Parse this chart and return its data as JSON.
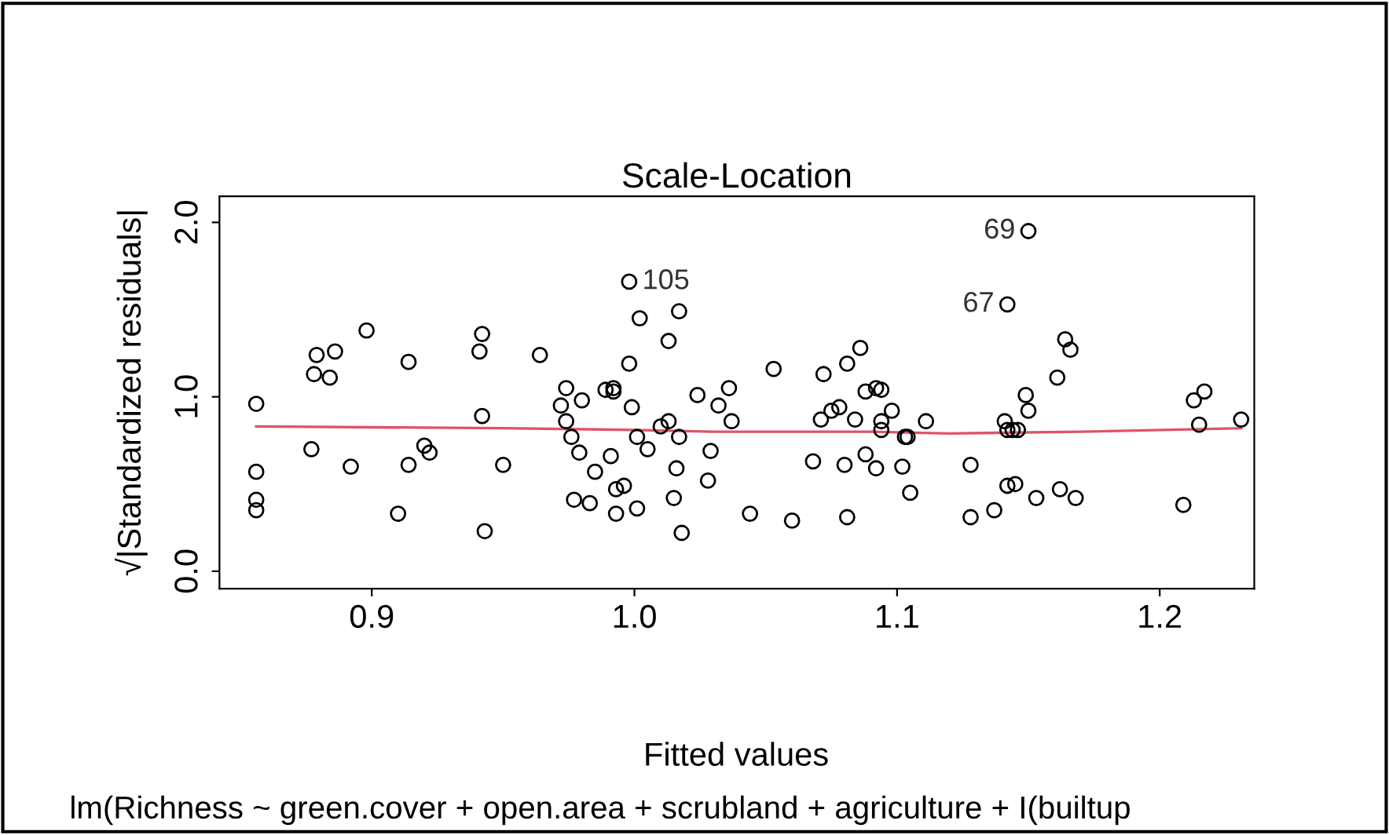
{
  "chart_data": {
    "type": "scatter",
    "title": "Scale-Location",
    "xlabel": "Fitted values",
    "ylabel": "√|Standardized residuals|",
    "annotations": [
      {
        "text": "105",
        "x": 0.998,
        "y": 1.66
      },
      {
        "text": "69",
        "x": 1.15,
        "y": 1.95
      },
      {
        "text": "67",
        "x": 1.142,
        "y": 1.53
      },
      "lm(Richness ~ green.cover + open.area + scrubland + agriculture + I(builtup"
    ],
    "xlim": [
      0.842,
      1.236
    ],
    "ylim": [
      -0.1,
      2.15
    ],
    "xticks": [
      {
        "value": 0.9,
        "label": "0.9"
      },
      {
        "value": 1.0,
        "label": "1.0"
      },
      {
        "value": 1.1,
        "label": "1.1"
      },
      {
        "value": 1.2,
        "label": "1.2"
      }
    ],
    "yticks": [
      {
        "value": 0.0,
        "label": "0.0"
      },
      {
        "value": 1.0,
        "label": "1.0"
      },
      {
        "value": 2.0,
        "label": "2.0"
      }
    ],
    "grid": false,
    "legend": false,
    "marker": "circle",
    "series": [
      {
        "color": "#000000",
        "x": [
          0.856,
          0.856,
          0.856,
          0.856,
          0.877,
          0.879,
          0.886,
          0.878,
          0.884,
          0.898,
          0.892,
          0.914,
          0.91,
          0.914,
          0.92,
          0.922,
          0.942,
          0.941,
          0.942,
          0.943,
          0.95,
          0.964,
          0.974,
          0.972,
          0.974,
          0.976,
          0.98,
          0.979,
          0.977,
          0.983,
          0.985,
          0.989,
          0.992,
          0.992,
          0.991,
          0.993,
          0.996,
          0.993,
          1.001,
          0.998,
          1.002,
          1.017,
          1.013,
          0.998,
          0.999,
          1.001,
          1.005,
          1.01,
          1.013,
          1.017,
          1.016,
          1.015,
          1.018,
          1.024,
          1.032,
          1.036,
          1.037,
          1.029,
          1.028,
          1.044,
          1.053,
          1.06,
          1.068,
          1.071,
          1.072,
          1.075,
          1.078,
          1.084,
          1.081,
          1.086,
          1.08,
          1.081,
          1.088,
          1.092,
          1.088,
          1.092,
          1.094,
          1.094,
          1.094,
          1.098,
          1.103,
          1.104,
          1.102,
          1.105,
          1.111,
          1.128,
          1.128,
          1.137,
          1.142,
          1.15,
          1.141,
          1.142,
          1.144,
          1.146,
          1.149,
          1.15,
          1.142,
          1.145,
          1.153,
          1.161,
          1.164,
          1.166,
          1.162,
          1.168,
          1.209,
          1.213,
          1.217,
          1.215,
          1.231
        ],
        "values": [
          0.96,
          0.57,
          0.41,
          0.35,
          0.7,
          1.24,
          1.26,
          1.13,
          1.11,
          1.38,
          0.6,
          1.2,
          0.33,
          0.61,
          0.72,
          0.68,
          1.36,
          1.26,
          0.89,
          0.23,
          0.61,
          1.24,
          1.05,
          0.95,
          0.86,
          0.77,
          0.98,
          0.68,
          0.41,
          0.39,
          0.57,
          1.04,
          1.05,
          1.03,
          0.66,
          0.47,
          0.49,
          0.33,
          0.36,
          1.66,
          1.45,
          1.49,
          1.32,
          1.19,
          0.94,
          0.77,
          0.7,
          0.83,
          0.86,
          0.77,
          0.59,
          0.42,
          0.22,
          1.01,
          0.95,
          1.05,
          0.86,
          0.69,
          0.52,
          0.33,
          1.16,
          0.29,
          0.63,
          0.87,
          1.13,
          0.92,
          0.94,
          0.87,
          1.19,
          1.28,
          0.61,
          0.31,
          0.67,
          0.59,
          1.03,
          1.05,
          1.04,
          0.86,
          0.81,
          0.92,
          0.77,
          0.77,
          0.6,
          0.45,
          0.86,
          0.61,
          0.31,
          0.35,
          1.53,
          1.95,
          0.86,
          0.81,
          0.81,
          0.81,
          1.01,
          0.92,
          0.49,
          0.5,
          0.42,
          1.11,
          1.33,
          1.27,
          0.47,
          0.42,
          0.38,
          0.98,
          1.03,
          0.84,
          0.87
        ]
      },
      {
        "type": "line",
        "color": "#df536b",
        "marker": "none",
        "line_style": "solid",
        "x": [
          0.856,
          0.95,
          1.0,
          1.03,
          1.09,
          1.12,
          1.17,
          1.231
        ],
        "values": [
          0.83,
          0.82,
          0.81,
          0.8,
          0.8,
          0.79,
          0.8,
          0.82
        ]
      }
    ]
  }
}
